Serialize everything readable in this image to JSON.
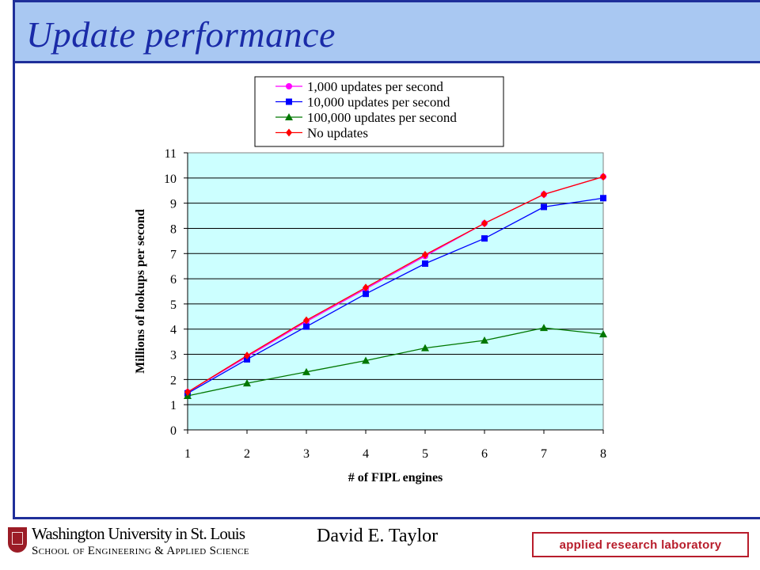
{
  "slide": {
    "title": "Update performance",
    "author": "David E. Taylor"
  },
  "logos": {
    "university_line1": "Washington University in St. Louis",
    "university_line2": "School of Engineering & Applied Science",
    "lab_badge": "applied research laboratory"
  },
  "colors": {
    "title_text": "#1a2ba8",
    "title_bar": "#a9c8f2",
    "frame": "#1f2f9a",
    "plot_background": "#ccffff",
    "lab_red": "#b81d2b"
  },
  "chart_data": {
    "type": "line",
    "title": "",
    "xlabel": "# of FIPL engines",
    "ylabel": "Millions of lookups per second",
    "x": [
      1,
      2,
      3,
      4,
      5,
      6,
      7,
      8
    ],
    "xticks": [
      "1",
      "2",
      "3",
      "4",
      "5",
      "6",
      "7",
      "8"
    ],
    "ylim": [
      0,
      11
    ],
    "yticks": [
      "0",
      "1",
      "2",
      "3",
      "4",
      "5",
      "6",
      "7",
      "8",
      "9",
      "10",
      "11"
    ],
    "grid": "horizontal",
    "legend_position": "top",
    "series": [
      {
        "name": "1,000 updates per second",
        "color": "#ff00ff",
        "marker": "circle",
        "values": [
          1.5,
          2.9,
          4.3,
          5.6,
          6.9,
          8.2,
          9.35,
          10.05
        ]
      },
      {
        "name": "10,000 updates per second",
        "color": "#0000ff",
        "marker": "square",
        "values": [
          1.45,
          2.8,
          4.1,
          5.4,
          6.6,
          7.6,
          8.85,
          9.2
        ]
      },
      {
        "name": "100,000 updates per second",
        "color": "#007700",
        "marker": "triangle",
        "values": [
          1.35,
          1.85,
          2.3,
          2.75,
          3.25,
          3.55,
          4.05,
          3.8
        ]
      },
      {
        "name": "No updates",
        "color": "#ff0000",
        "marker": "diamond",
        "values": [
          1.5,
          2.95,
          4.35,
          5.65,
          6.95,
          8.2,
          9.35,
          10.05
        ]
      }
    ]
  }
}
